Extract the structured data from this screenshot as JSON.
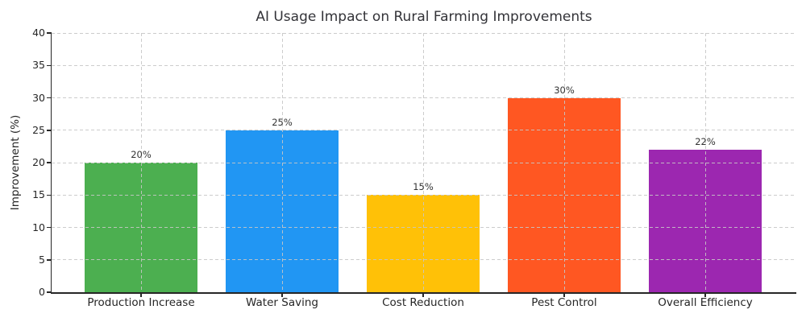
{
  "title": "AI Usage Impact on Rural Farming Improvements",
  "chart_data": {
    "type": "bar",
    "title": "AI Usage Impact on Rural Farming Improvements",
    "xlabel": "",
    "ylabel": "Improvement (%)",
    "categories": [
      "Production Increase",
      "Water Saving",
      "Cost Reduction",
      "Pest Control",
      "Overall Efficiency"
    ],
    "values": [
      20,
      25,
      15,
      30,
      22
    ],
    "bar_labels": [
      "20%",
      "25%",
      "15%",
      "30%",
      "22%"
    ],
    "bar_colors": [
      "#4CAF50",
      "#2196F3",
      "#FFC107",
      "#FF5722",
      "#9C27B0"
    ],
    "ylim": [
      0,
      40
    ],
    "yticks": [
      0,
      5,
      10,
      15,
      20,
      25,
      30,
      35,
      40
    ],
    "grid": "dashed, horizontal and vertical, drawn over bars",
    "legend": "none",
    "colors": {
      "background": "#ffffff",
      "grid": "#cccccc",
      "axis": "#262626",
      "title_text": "#333338",
      "tick_text": "#262626",
      "value_label_text": "#333333"
    }
  }
}
